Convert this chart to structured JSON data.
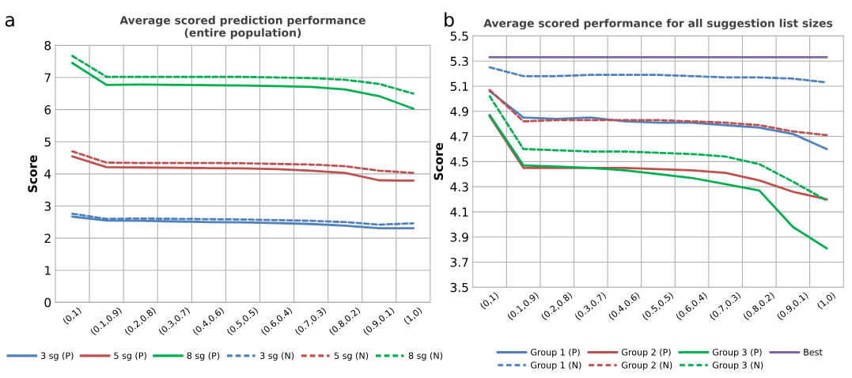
{
  "chart_data": [
    {
      "type": "line",
      "title": "Average scored prediction performance\n(entire population)",
      "ylabel": "Score",
      "annotations": [
        "a"
      ],
      "categories": [
        "(0,1)",
        "(0.1,0.9)",
        "(0.2,0.8)",
        "(0.3,0.7)",
        "(0.4,0.6)",
        "(0.5,0.5)",
        "(0.6,0.4)",
        "(0.7,0.3)",
        "(0.8,0.2)",
        "(0.9,0.1)",
        "(1,0)"
      ],
      "ylim": [
        0,
        8
      ],
      "yticks": [
        0,
        1,
        2,
        3,
        4,
        5,
        6,
        7,
        8
      ],
      "grid": true,
      "legend": "bottom",
      "series": [
        {
          "name": "3 sg (P)",
          "color": "#4f81bd",
          "line_style": "solid",
          "values": [
            2.67,
            2.55,
            2.54,
            2.52,
            2.5,
            2.49,
            2.47,
            2.44,
            2.39,
            2.31,
            2.31
          ]
        },
        {
          "name": "5 sg (P)",
          "color": "#c0504d",
          "line_style": "solid",
          "values": [
            4.54,
            4.21,
            4.2,
            4.19,
            4.18,
            4.17,
            4.15,
            4.1,
            4.03,
            3.8,
            3.79
          ]
        },
        {
          "name": "8 sg (P)",
          "color": "#00b050",
          "line_style": "solid",
          "values": [
            7.45,
            6.77,
            6.78,
            6.77,
            6.76,
            6.75,
            6.73,
            6.71,
            6.63,
            6.42,
            6.03
          ]
        },
        {
          "name": "3 sg (N)",
          "color": "#4f81bd",
          "line_style": "dashed",
          "values": [
            2.76,
            2.6,
            2.61,
            2.6,
            2.59,
            2.58,
            2.56,
            2.54,
            2.5,
            2.42,
            2.46
          ]
        },
        {
          "name": "5 sg (N)",
          "color": "#c0504d",
          "line_style": "dashed",
          "values": [
            4.7,
            4.35,
            4.34,
            4.34,
            4.34,
            4.33,
            4.31,
            4.29,
            4.24,
            4.1,
            4.03
          ]
        },
        {
          "name": "8 sg (N)",
          "color": "#00b050",
          "line_style": "dashed",
          "values": [
            7.67,
            7.02,
            7.02,
            7.02,
            7.02,
            7.02,
            7.0,
            6.98,
            6.93,
            6.8,
            6.5
          ]
        }
      ]
    },
    {
      "type": "line",
      "title": "Average scored performance for all suggestion list sizes",
      "ylabel": "Score",
      "annotations": [
        "b"
      ],
      "categories": [
        "(0,1)",
        "(0.1,0.9)",
        "(0.2,0.8)",
        "(0.3,0.7)",
        "(0.4,0.6)",
        "(0.5,0.5)",
        "(0.6,0.4)",
        "(0.7,0.3)",
        "(0.8,0.2)",
        "(0.9,0.1)",
        "(1,0)"
      ],
      "ylim": [
        3.5,
        5.5
      ],
      "yticks": [
        3.5,
        3.7,
        3.9,
        4.1,
        4.3,
        4.5,
        4.7,
        4.9,
        5.1,
        5.3,
        5.5
      ],
      "grid": true,
      "legend": "bottom",
      "series": [
        {
          "name": "Group 1 (P)",
          "color": "#4f81bd",
          "line_style": "solid",
          "values": [
            5.06,
            4.85,
            4.84,
            4.85,
            4.82,
            4.81,
            4.81,
            4.79,
            4.77,
            4.72,
            4.6
          ]
        },
        {
          "name": "Group 2 (P)",
          "color": "#c0504d",
          "line_style": "solid",
          "values": [
            4.86,
            4.45,
            4.45,
            4.45,
            4.45,
            4.44,
            4.43,
            4.41,
            4.35,
            4.26,
            4.2
          ]
        },
        {
          "name": "Group 3 (P)",
          "color": "#00b050",
          "line_style": "solid",
          "values": [
            4.87,
            4.47,
            4.46,
            4.45,
            4.43,
            4.4,
            4.37,
            4.32,
            4.27,
            3.98,
            3.81
          ]
        },
        {
          "name": "Best",
          "color": "#8064a2",
          "line_style": "solid",
          "values": [
            5.33,
            5.33,
            5.33,
            5.33,
            5.33,
            5.33,
            5.33,
            5.33,
            5.33,
            5.33,
            5.33
          ]
        },
        {
          "name": "Group 1 (N)",
          "color": "#4f81bd",
          "line_style": "dashed",
          "values": [
            5.25,
            5.18,
            5.18,
            5.19,
            5.19,
            5.19,
            5.18,
            5.17,
            5.17,
            5.16,
            5.13
          ]
        },
        {
          "name": "Group 2 (N)",
          "color": "#c0504d",
          "line_style": "dashed",
          "values": [
            5.07,
            4.82,
            4.83,
            4.83,
            4.83,
            4.83,
            4.82,
            4.81,
            4.79,
            4.74,
            4.71
          ]
        },
        {
          "name": "Group 3 (N)",
          "color": "#00b050",
          "line_style": "dashed",
          "values": [
            5.02,
            4.6,
            4.59,
            4.58,
            4.58,
            4.57,
            4.56,
            4.54,
            4.48,
            4.34,
            4.19
          ]
        }
      ]
    }
  ]
}
